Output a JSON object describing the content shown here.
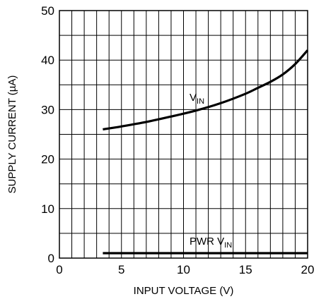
{
  "chart_data": {
    "type": "line",
    "xlabel": "INPUT VOLTAGE (V)",
    "ylabel": "SUPPLY CURRENT (µA)",
    "xlim": [
      0,
      20
    ],
    "ylim": [
      0,
      50
    ],
    "x_ticks": [
      0,
      5,
      10,
      15,
      20
    ],
    "y_ticks": [
      0,
      10,
      20,
      30,
      40,
      50
    ],
    "x_tick_labels": [
      "0",
      "5",
      "10",
      "15",
      "20"
    ],
    "y_tick_labels": [
      "0",
      "10",
      "20",
      "30",
      "40",
      "50"
    ],
    "grid": true,
    "x_grid_step": 1,
    "y_grid_step": 5,
    "series": [
      {
        "name": "VIN",
        "label_main": "V",
        "label_sub": "IN",
        "x": [
          3.5,
          5,
          7,
          9,
          11,
          13,
          15,
          16,
          17,
          18,
          19,
          20
        ],
        "y": [
          26,
          26.6,
          27.5,
          28.6,
          29.8,
          31.3,
          33.2,
          34.4,
          35.6,
          37.1,
          39.2,
          42
        ]
      },
      {
        "name": "PWR VIN",
        "label_main": "PWR V",
        "label_sub": "IN",
        "x": [
          3.5,
          20
        ],
        "y": [
          1,
          1
        ]
      }
    ]
  }
}
